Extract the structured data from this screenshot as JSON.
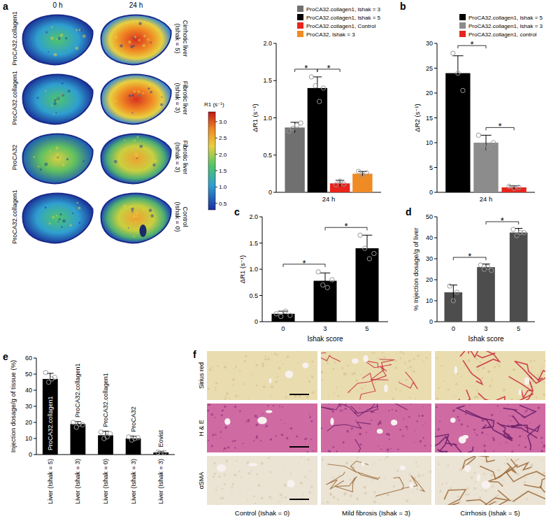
{
  "panel_labels": [
    "a",
    "b",
    "c",
    "d",
    "e",
    "f"
  ],
  "mri": {
    "columns": [
      "0 h",
      "24 h"
    ],
    "rows": [
      {
        "agent": "ProCA32.collagen1",
        "condition": "Cirrhotic liver (Ishak = 5)"
      },
      {
        "agent": "ProCA32.collagen1",
        "condition": "Fibrotic liver (Ishak = 3)"
      },
      {
        "agent": "ProCA32",
        "condition": "Fibrotic liver (Ishak = 3)"
      },
      {
        "agent": "ProCA32.collagen1",
        "condition": "Control (Ishak = 0)"
      }
    ],
    "colorbar": {
      "label": "R1 (s⁻¹)",
      "range": [
        0.3,
        3.3
      ],
      "ticks": [
        0.5,
        {
          "value": 1,
          "label": "1.0"
        },
        1.5,
        {
          "value": 2,
          "label": "2.0"
        },
        2.5,
        {
          "value": 3,
          "label": "3.0"
        }
      ]
    }
  },
  "histology": {
    "rows": [
      "Sirius red",
      "H & E",
      "αSMA"
    ],
    "columns": [
      "Control (Ishak = 0)",
      "Mild fibrosis (Ishak = 3)",
      "Cirrhosis (Ishak = 5)"
    ]
  },
  "chart_data": [
    {
      "type": "bar",
      "y_label": "ΔR1 (s⁻¹)",
      "categories": [
        "24 h"
      ],
      "ylim": [
        0,
        2
      ],
      "yticks": [
        0,
        0.5,
        {
          "value": 1,
          "label": "1.0"
        },
        1.5,
        {
          "value": 2,
          "label": "2.0"
        }
      ],
      "legend": "top",
      "series": [
        {
          "name": "ProCA32.collagen1, Ishak = 3",
          "color": "#707070",
          "values": [
            0.87
          ],
          "errors": [
            0.07
          ],
          "points": [
            [
              0.82,
              0.86,
              0.9,
              0.93
            ]
          ]
        },
        {
          "name": "ProCA32.collagen1, Ishak = 5",
          "color": "#000000",
          "values": [
            1.4
          ],
          "errors": [
            0.15
          ],
          "points": [
            [
              1.55,
              1.43,
              1.22,
              1.4
            ]
          ]
        },
        {
          "name": "ProCA32.collagen1, Control",
          "color": "#e8241c",
          "values": [
            0.12
          ],
          "errors": [
            0.04
          ],
          "points": [
            [
              0.1,
              0.15,
              0.11
            ]
          ]
        },
        {
          "name": "ProCA32, Ishak = 3",
          "color": "#f08a24",
          "values": [
            0.25
          ],
          "errors": [
            0.03
          ],
          "points": [
            [
              0.28,
              0.23,
              0.26
            ]
          ]
        }
      ],
      "significance": [
        {
          "label": "*",
          "pair": [
            0,
            1
          ]
        },
        {
          "label": "*",
          "pair": [
            1,
            2
          ]
        }
      ]
    },
    {
      "type": "bar",
      "y_label": "ΔR2 (s⁻¹)",
      "categories": [
        "24 h"
      ],
      "ylim": [
        0,
        30
      ],
      "yticks": [
        0,
        5,
        10,
        15,
        20,
        25,
        30
      ],
      "legend": "top-right",
      "series": [
        {
          "name": "ProCA32.collagen1, Ishak = 5",
          "color": "#000000",
          "values": [
            24
          ],
          "errors": [
            3.5
          ],
          "points": [
            [
              28,
              24,
              20.5
            ]
          ]
        },
        {
          "name": "ProCA32.collagen1, Ishak = 3",
          "color": "#8c8c8c",
          "values": [
            10
          ],
          "errors": [
            1.5
          ],
          "points": [
            [
              11.5,
              9.5,
              9,
              10
            ]
          ]
        },
        {
          "name": "ProCA32.collagen1, control",
          "color": "#e8241c",
          "values": [
            1
          ],
          "errors": [
            0.3
          ],
          "points": [
            [
              1.2,
              0.8,
              1
            ]
          ]
        }
      ],
      "significance": [
        {
          "label": "*",
          "pair": [
            0,
            1
          ]
        },
        {
          "label": "*",
          "pair": [
            1,
            2
          ]
        }
      ]
    },
    {
      "type": "bar",
      "y_label": "ΔR1 (s⁻¹)",
      "x_label": "Ishak score",
      "categories": [
        "0",
        "3",
        "5"
      ],
      "values": [
        0.15,
        0.78,
        1.4
      ],
      "errors": [
        0.05,
        0.15,
        0.25
      ],
      "points": [
        [
          0.15,
          0.1,
          0.2,
          0.12
        ],
        [
          0.95,
          0.7,
          0.65,
          0.8
        ],
        [
          1.65,
          1.4,
          1.2,
          1.3
        ]
      ],
      "color": "#000000",
      "ylim": [
        0,
        2
      ],
      "yticks": [
        0,
        0.5,
        {
          "value": 1,
          "label": "1.0"
        },
        1.5,
        {
          "value": 2,
          "label": "2.0"
        }
      ],
      "significance": [
        {
          "label": "*",
          "pair": [
            0,
            1
          ]
        },
        {
          "label": "*",
          "pair": [
            1,
            2
          ]
        }
      ]
    },
    {
      "type": "bar",
      "y_label": "% Injection dosage/g of liver",
      "x_label": "Ishak score",
      "categories": [
        "0",
        "3",
        "5"
      ],
      "values": [
        14,
        26,
        42.5
      ],
      "errors": [
        3.5,
        1.5,
        2
      ],
      "points": [
        [
          17,
          10,
          14
        ],
        [
          27,
          25,
          26,
          24.5
        ],
        [
          44,
          41,
          42.5,
          42.5
        ]
      ],
      "color": "#4d4d4d",
      "ylim": [
        0,
        50
      ],
      "yticks": [
        0,
        10,
        20,
        30,
        40,
        50
      ],
      "significance": [
        {
          "label": "*",
          "pair": [
            0,
            1
          ]
        },
        {
          "label": "*",
          "pair": [
            1,
            2
          ]
        }
      ]
    },
    {
      "type": "bar",
      "y_label": "Injection dosage/g of tissue (%)",
      "categories": [
        "Liver (Ishak = 5)",
        "Liver (Ishak = 3)",
        "Liver (Ishak = 0)",
        "Liver (Ishak = 3)",
        "Liver (Ishak = 3)"
      ],
      "values": [
        47,
        19,
        12,
        10,
        1.3
      ],
      "errors": [
        3.5,
        1.5,
        2.5,
        1.5,
        0.5
      ],
      "points": [
        [
          51,
          45,
          47,
          48
        ],
        [
          20,
          17,
          19,
          18.5
        ],
        [
          14,
          10,
          11,
          13
        ],
        [
          11,
          9,
          10,
          10.5
        ],
        [
          1.5,
          1,
          1.3
        ]
      ],
      "bar_labels": [
        "ProCA32.collagen1",
        "ProCA32.collagen1",
        "ProCA32.collagen1",
        "ProCA32",
        "Eovist"
      ],
      "color": "#000000",
      "ylim": [
        0,
        60
      ],
      "yticks": [
        0,
        10,
        20,
        30,
        40,
        50,
        60
      ]
    }
  ]
}
